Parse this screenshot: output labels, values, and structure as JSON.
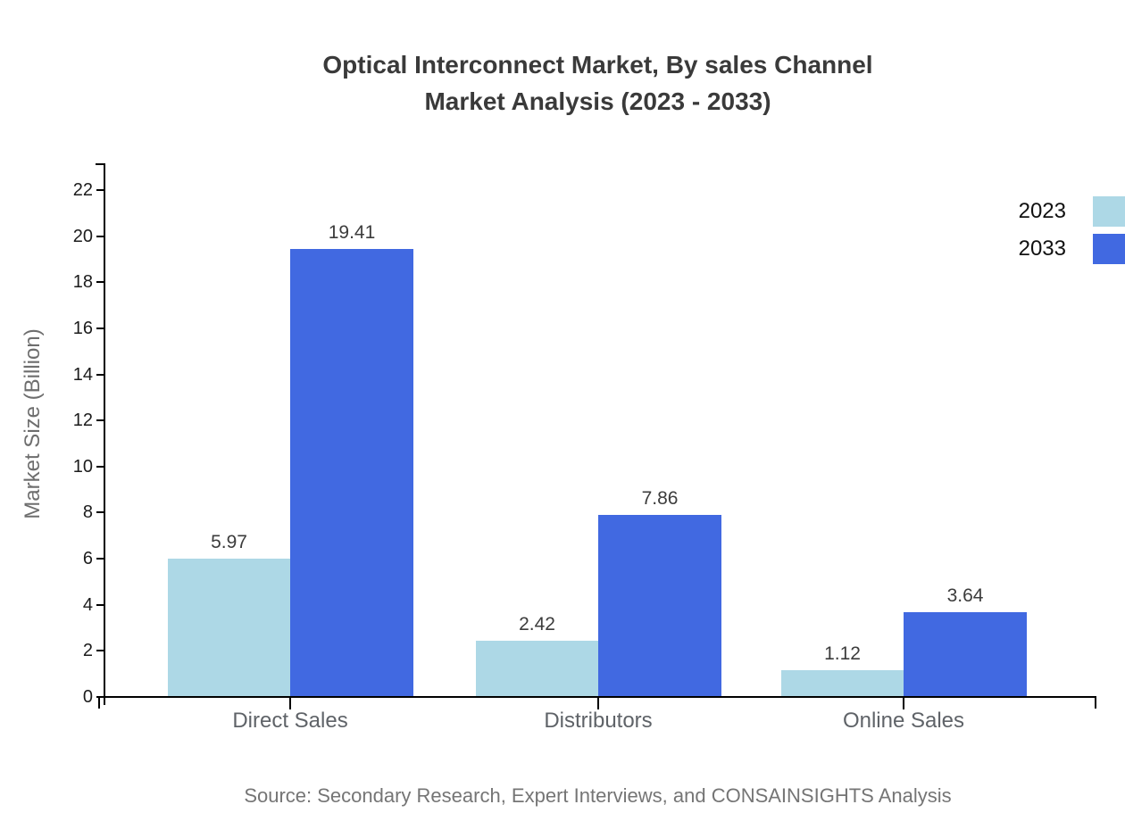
{
  "title": {
    "line1": "Optical Interconnect Market, By sales Channel",
    "line2": "Market Analysis (2023 - 2033)"
  },
  "source": "Source: Secondary Research, Expert Interviews, and CONSAINSIGHTS Analysis",
  "colors": {
    "series_2023": "#ADD8E6",
    "series_2033": "#4169E1",
    "axis": "#000000",
    "title_text": "#3A3A3A"
  },
  "chart_data": {
    "type": "bar",
    "title": "Optical Interconnect Market, By sales Channel Market Analysis (2023 - 2033)",
    "categories": [
      "Direct Sales",
      "Distributors",
      "Online Sales"
    ],
    "series": [
      {
        "name": "2023",
        "color": "#ADD8E6",
        "values": [
          5.97,
          2.42,
          1.12
        ]
      },
      {
        "name": "2033",
        "color": "#4169E1",
        "values": [
          19.41,
          7.86,
          3.64
        ]
      }
    ],
    "xlabel": "",
    "ylabel": "Market Size (Billion)",
    "ylim": [
      0,
      23
    ],
    "yticks": [
      0,
      2,
      4,
      6,
      8,
      10,
      12,
      14,
      16,
      18,
      20,
      22
    ],
    "grid": false,
    "legend_position": "upper-right-outside",
    "value_labels_shown": true
  }
}
